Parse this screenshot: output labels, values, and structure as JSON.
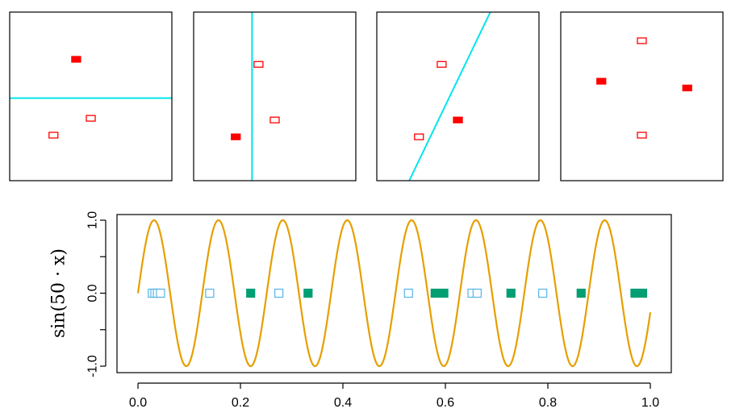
{
  "colors": {
    "line_cyan": "#00e5ee",
    "point_red": "#ff0000",
    "curve": "#e69f00",
    "pos_points": "#009e73",
    "neg_points": "#56b4e9",
    "axis": "#000000"
  },
  "chart_data": [
    {
      "type": "scatter",
      "xlim": [
        0,
        1
      ],
      "ylim": [
        0,
        1
      ],
      "points": [
        {
          "x": 0.41,
          "y": 0.72,
          "filled": true
        },
        {
          "x": 0.5,
          "y": 0.37,
          "filled": false
        },
        {
          "x": 0.27,
          "y": 0.27,
          "filled": false
        }
      ],
      "line": {
        "orientation": "horizontal",
        "y": 0.49
      }
    },
    {
      "type": "scatter",
      "xlim": [
        0,
        1
      ],
      "ylim": [
        0,
        1
      ],
      "points": [
        {
          "x": 0.4,
          "y": 0.69,
          "filled": false
        },
        {
          "x": 0.5,
          "y": 0.36,
          "filled": false
        },
        {
          "x": 0.26,
          "y": 0.26,
          "filled": true
        }
      ],
      "line": {
        "orientation": "vertical",
        "x": 0.36
      }
    },
    {
      "type": "scatter",
      "xlim": [
        0,
        1
      ],
      "ylim": [
        0,
        1
      ],
      "points": [
        {
          "x": 0.4,
          "y": 0.69,
          "filled": false
        },
        {
          "x": 0.5,
          "y": 0.36,
          "filled": true
        },
        {
          "x": 0.26,
          "y": 0.26,
          "filled": false
        }
      ],
      "line": {
        "orientation": "diagonal",
        "from": [
          0.2,
          0.0
        ],
        "to": [
          0.7,
          1.0
        ]
      }
    },
    {
      "type": "scatter",
      "xlim": [
        0,
        1
      ],
      "ylim": [
        0,
        1
      ],
      "points": [
        {
          "x": 0.5,
          "y": 0.83,
          "filled": false
        },
        {
          "x": 0.25,
          "y": 0.59,
          "filled": true
        },
        {
          "x": 0.78,
          "y": 0.55,
          "filled": true
        },
        {
          "x": 0.5,
          "y": 0.27,
          "filled": false
        }
      ],
      "line": null
    },
    {
      "type": "line",
      "ylabel": "sin(50 · x)",
      "xlim": [
        0,
        1
      ],
      "ylim": [
        -1.1,
        1.1
      ],
      "x_ticks": [
        "0.0",
        "0.2",
        "0.4",
        "0.6",
        "0.8",
        "1.0"
      ],
      "x_tick_values": [
        0.0,
        0.2,
        0.4,
        0.6,
        0.8,
        1.0
      ],
      "y_ticks": [
        "-1.0",
        "0.0",
        "1.0"
      ],
      "y_tick_values": [
        -1.0,
        0.0,
        1.0
      ],
      "y_minor_tick_values": [
        -0.5,
        0.5
      ],
      "curve": {
        "function": "sin(50x)",
        "x_range": [
          0,
          1
        ]
      },
      "series": [
        {
          "filled": true,
          "x": [
            0.22,
            0.332,
            0.58,
            0.597,
            0.728,
            0.865,
            0.97,
            0.985
          ],
          "y": [
            0,
            0,
            0,
            0,
            0,
            0,
            0,
            0
          ]
        },
        {
          "filled": false,
          "x": [
            0.028,
            0.033,
            0.038,
            0.044,
            0.14,
            0.275,
            0.528,
            0.652,
            0.662,
            0.79
          ],
          "y": [
            0,
            0,
            0,
            0,
            0,
            0,
            0,
            0,
            0,
            0
          ]
        }
      ]
    }
  ]
}
